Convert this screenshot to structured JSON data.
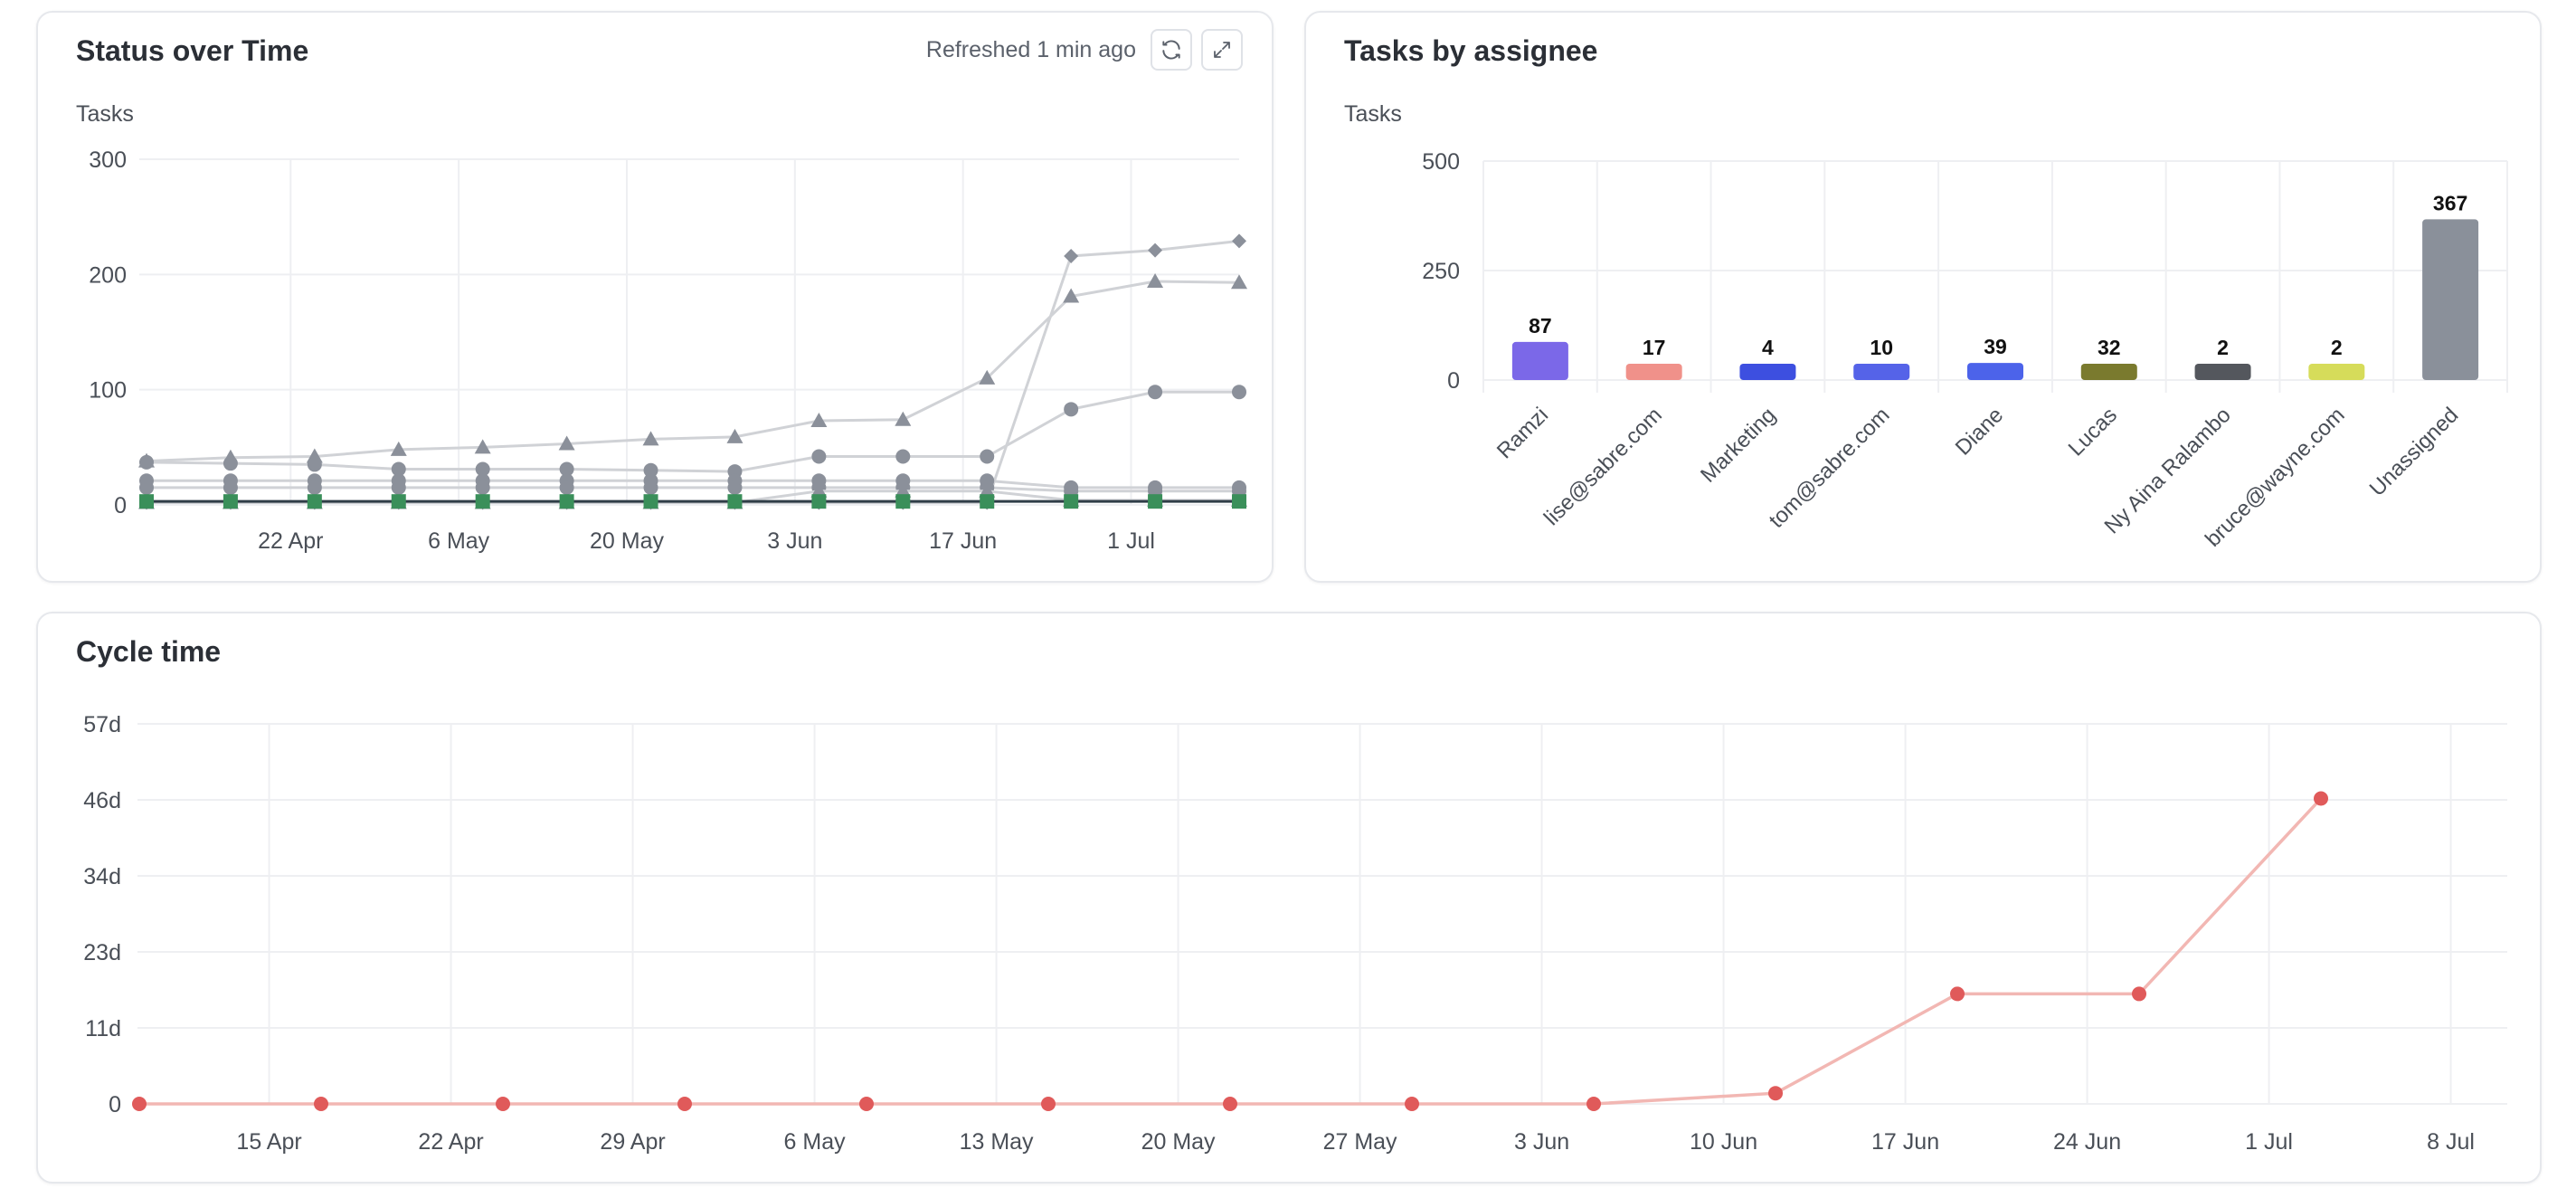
{
  "status_card": {
    "title": "Status over Time",
    "refreshed": "Refreshed 1 min ago",
    "refresh_icon": "refresh-icon",
    "expand_icon": "expand-icon"
  },
  "assignee_card": {
    "title": "Tasks by assignee"
  },
  "cycle_card": {
    "title": "Cycle time"
  },
  "colors": {
    "grey_series": "#8b909a",
    "grey_line": "#d0d2d6",
    "green": "#3a8f5a",
    "cycle_line": "#f2b7b3",
    "cycle_point": "#e05a5a",
    "grid": "#eeeff2"
  },
  "chart_data": [
    {
      "type": "line",
      "title": "Status over Time",
      "ylabel": "Tasks",
      "ylim": [
        0,
        300
      ],
      "y_ticks": [
        "0",
        "100",
        "200",
        "300"
      ],
      "x_tick_labels": [
        "22 Apr",
        "6 May",
        "20 May",
        "3 Jun",
        "17 Jun",
        "1 Jul"
      ],
      "x": [
        "2024-04-10",
        "2024-04-17",
        "2024-04-24",
        "2024-05-01",
        "2024-05-08",
        "2024-05-15",
        "2024-05-22",
        "2024-05-29",
        "2024-06-05",
        "2024-06-12",
        "2024-06-19",
        "2024-06-26",
        "2024-07-03",
        "2024-07-10"
      ],
      "grid": true,
      "series": [
        {
          "marker": "diamond",
          "values": [
            2,
            2,
            2,
            2,
            2,
            2,
            2,
            2,
            2,
            2,
            2,
            216,
            221,
            229
          ]
        },
        {
          "marker": "triangle",
          "values": [
            38,
            41,
            42,
            48,
            50,
            53,
            57,
            59,
            73,
            74,
            110,
            181,
            194,
            193
          ]
        },
        {
          "marker": "circle",
          "values": [
            37,
            36,
            35,
            31,
            31,
            31,
            30,
            29,
            42,
            42,
            42,
            83,
            98,
            98
          ]
        },
        {
          "marker": "circle",
          "values": [
            21,
            21,
            21,
            21,
            21,
            21,
            21,
            21,
            21,
            21,
            21,
            15,
            15,
            15
          ]
        },
        {
          "marker": "circle",
          "values": [
            15,
            15,
            15,
            15,
            15,
            15,
            15,
            15,
            15,
            15,
            15,
            12,
            12,
            12
          ]
        },
        {
          "marker": "triangle",
          "values": [
            2,
            2,
            2,
            2,
            2,
            2,
            2,
            2,
            12,
            12,
            12,
            4,
            4,
            4
          ]
        },
        {
          "marker": "square",
          "values": [
            3,
            3,
            3,
            3,
            3,
            3,
            3,
            3,
            3,
            3,
            3,
            3,
            3,
            3
          ]
        }
      ]
    },
    {
      "type": "bar",
      "title": "Tasks by assignee",
      "ylabel": "Tasks",
      "ylim": [
        0,
        500
      ],
      "y_ticks": [
        "0",
        "250",
        "500"
      ],
      "categories": [
        "Ramzi",
        "lise@sabre.com",
        "Marketing",
        "tom@sabre.com",
        "Diane",
        "Lucas",
        "Ny Aina Ralambo",
        "bruce@wayne.com",
        "Unassigned"
      ],
      "values": [
        87,
        17,
        4,
        10,
        39,
        32,
        2,
        2,
        367
      ],
      "colors": [
        "#7b68e8",
        "#f0918a",
        "#3d4fe0",
        "#5563e8",
        "#4c63ea",
        "#7a7a2e",
        "#54575d",
        "#d6dc5a",
        "#8a909a"
      ],
      "grid": true
    },
    {
      "type": "line",
      "title": "Cycle time",
      "y_ticks": [
        "0",
        "11d",
        "23d",
        "34d",
        "46d",
        "57d"
      ],
      "ylim": [
        0,
        57
      ],
      "x_tick_labels": [
        "15 Apr",
        "22 Apr",
        "29 Apr",
        "6 May",
        "13 May",
        "20 May",
        "27 May",
        "3 Jun",
        "10 Jun",
        "17 Jun",
        "24 Jun",
        "1 Jul",
        "8 Jul"
      ],
      "x": [
        "2024-04-10",
        "2024-04-17",
        "2024-04-24",
        "2024-05-01",
        "2024-05-08",
        "2024-05-15",
        "2024-05-22",
        "2024-05-29",
        "2024-06-05",
        "2024-06-12",
        "2024-06-19",
        "2024-06-26",
        "2024-07-03"
      ],
      "values": [
        0,
        0,
        0,
        0,
        0,
        0,
        0,
        0,
        0,
        1.6,
        16.5,
        16.5,
        45.8
      ],
      "grid": true
    }
  ]
}
